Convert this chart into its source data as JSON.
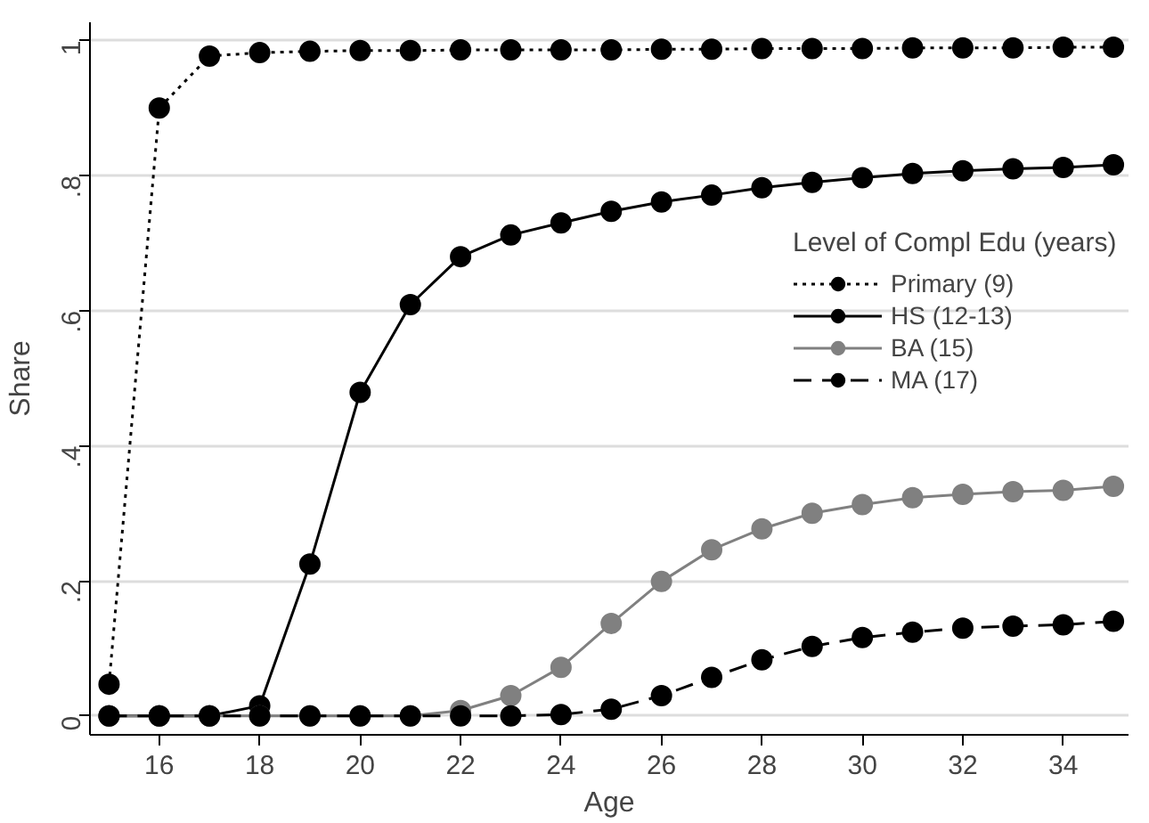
{
  "chart_data": {
    "type": "line",
    "xlabel": "Age",
    "ylabel": "Share",
    "legend_title": "Level of Compl Edu (years)",
    "legend": "right",
    "grid": "y",
    "marker": "circle",
    "x": [
      15,
      16,
      17,
      18,
      19,
      20,
      21,
      22,
      23,
      24,
      25,
      26,
      27,
      28,
      29,
      30,
      31,
      32,
      33,
      34,
      35
    ],
    "xlim": [
      14.62,
      35.3
    ],
    "ylim": [
      -0.028,
      1.027
    ],
    "xticks": [
      16,
      18,
      20,
      22,
      24,
      26,
      28,
      30,
      32,
      34
    ],
    "yticks": [
      {
        "value": 0,
        "label": "0"
      },
      {
        "value": 0.2,
        "label": ".2"
      },
      {
        "value": 0.4,
        "label": ".4"
      },
      {
        "value": 0.6,
        "label": ".6"
      },
      {
        "value": 0.8,
        "label": ".8"
      },
      {
        "value": 1,
        "label": "1"
      }
    ],
    "series": [
      {
        "name": "Primary (9)",
        "color": "#000000",
        "line_style": "dotted",
        "values": [
          0.047,
          0.9,
          0.977,
          0.982,
          0.984,
          0.985,
          0.985,
          0.986,
          0.986,
          0.986,
          0.986,
          0.987,
          0.987,
          0.988,
          0.988,
          0.988,
          0.989,
          0.989,
          0.989,
          0.99,
          0.99
        ]
      },
      {
        "name": "HS (12-13)",
        "color": "#000000",
        "line_style": "solid",
        "values": [
          0,
          0,
          0,
          0.015,
          0.225,
          0.479,
          0.609,
          0.68,
          0.712,
          0.73,
          0.747,
          0.761,
          0.771,
          0.782,
          0.79,
          0.797,
          0.803,
          0.807,
          0.81,
          0.812,
          0.816
        ]
      },
      {
        "name": "BA (15)",
        "color": "#808080",
        "line_style": "solid",
        "values": [
          0,
          0,
          0,
          0,
          0,
          0,
          0,
          0.008,
          0.03,
          0.072,
          0.137,
          0.199,
          0.246,
          0.277,
          0.3,
          0.313,
          0.323,
          0.328,
          0.332,
          0.334,
          0.34
        ]
      },
      {
        "name": "MA (17)",
        "color": "#000000",
        "line_style": "dashed",
        "values": [
          0,
          0,
          0,
          0,
          0,
          0,
          0,
          0,
          0,
          0.002,
          0.01,
          0.03,
          0.057,
          0.083,
          0.103,
          0.116,
          0.124,
          0.13,
          0.133,
          0.135,
          0.14
        ]
      }
    ]
  }
}
